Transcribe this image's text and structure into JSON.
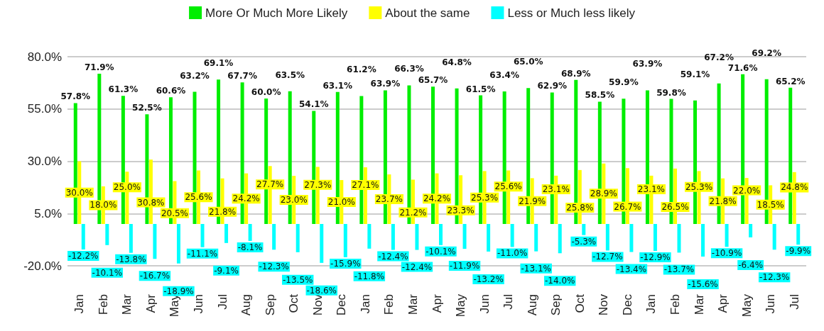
{
  "chart_data": {
    "type": "bar",
    "categories": [
      "Jan",
      "Feb",
      "Mar",
      "Apr",
      "May",
      "Jun",
      "Jul",
      "Aug",
      "Sep",
      "Oct",
      "Nov",
      "Dec",
      "Jan",
      "Feb",
      "Mar",
      "Apr",
      "May",
      "Jun",
      "Jul",
      "Aug",
      "Sep",
      "Oct",
      "Nov",
      "Dec",
      "Jan",
      "Feb",
      "Mar",
      "Apr",
      "May",
      "Jun",
      "Jul"
    ],
    "series": [
      {
        "name": "More Or Much More Likely",
        "color": "#00ee00",
        "values": [
          57.8,
          71.9,
          61.3,
          52.5,
          60.6,
          63.2,
          69.1,
          67.7,
          60.0,
          63.5,
          54.1,
          63.1,
          61.2,
          63.9,
          66.3,
          65.7,
          64.8,
          61.5,
          63.4,
          65.0,
          62.9,
          68.9,
          58.5,
          59.9,
          63.9,
          59.8,
          59.1,
          67.2,
          71.6,
          69.2,
          65.2
        ],
        "value_labels": [
          "57.8%",
          "71.9%",
          "61.3%",
          "52.5%",
          "60.6%",
          "63.2%",
          "69.1%",
          "67.7%",
          "60.0%",
          "63.5%",
          "54.1%",
          "63.1%",
          "61.2%",
          "63.9%",
          "66.3%",
          "65.7%",
          "64.8%",
          "61.5%",
          "63.4%",
          "65.0%",
          "62.9%",
          "68.9%",
          "58.5%",
          "59.9%",
          "63.9%",
          "59.8%",
          "59.1%",
          "67.2%",
          "71.6%",
          "69.2%",
          "65.2%"
        ]
      },
      {
        "name": "About the same",
        "color": "#ffff00",
        "values": [
          30.0,
          18.0,
          25.0,
          30.8,
          20.5,
          25.6,
          21.8,
          24.2,
          27.7,
          23.0,
          27.3,
          21.0,
          27.1,
          23.7,
          21.2,
          24.2,
          23.3,
          25.3,
          25.6,
          21.9,
          23.1,
          25.8,
          28.9,
          26.7,
          23.1,
          26.5,
          25.3,
          21.8,
          22.0,
          18.5,
          24.8
        ],
        "value_labels": [
          "30.0%",
          "18.0%",
          "25.0%",
          "30.8%",
          "20.5%",
          "25.6%",
          "21.8%",
          "24.2%",
          "27.7%",
          "23.0%",
          "27.3%",
          "21.0%",
          "27.1%",
          "23.7%",
          "21.2%",
          "24.2%",
          "23.3%",
          "25.3%",
          "25.6%",
          "21.9%",
          "23.1%",
          "25.8%",
          "28.9%",
          "26.7%",
          "23.1%",
          "26.5%",
          "25.3%",
          "21.8%",
          "22.0%",
          "18.5%",
          "24.8%"
        ]
      },
      {
        "name": "Less or Much less likely",
        "color": "#00ffff",
        "values": [
          -12.2,
          -10.1,
          -13.8,
          -16.7,
          -18.9,
          -11.1,
          -9.1,
          -8.1,
          -12.3,
          -13.5,
          -18.6,
          -15.9,
          -11.8,
          -12.4,
          -12.4,
          -10.1,
          -11.9,
          -13.2,
          -11.0,
          -13.1,
          -14.0,
          -5.3,
          -12.7,
          -13.4,
          -12.9,
          -13.7,
          -15.6,
          -10.9,
          -6.4,
          -12.3,
          -9.9
        ],
        "value_labels": [
          "-12.2%",
          "-10.1%",
          "-13.8%",
          "-16.7%",
          "-18.9%",
          "-11.1%",
          "-9.1%",
          "-8.1%",
          "-12.3%",
          "-13.5%",
          "-18.6%",
          "-15.9%",
          "-11.8%",
          "-12.4%",
          "-12.4%",
          "-10.1%",
          "-11.9%",
          "-13.2%",
          "-11.0%",
          "-13.1%",
          "-14.0%",
          "-5.3%",
          "-12.7%",
          "-13.4%",
          "-12.9%",
          "-13.7%",
          "-15.6%",
          "-10.9%",
          "-6.4%",
          "-12.3%",
          "-9.9%"
        ]
      }
    ],
    "ylim": [
      -20,
      80
    ],
    "yticks": [
      {
        "value": -20,
        "label": "-20.0%"
      },
      {
        "value": 5,
        "label": "5.0%"
      },
      {
        "value": 30,
        "label": "30.0%"
      },
      {
        "value": 55,
        "label": "55.0%"
      },
      {
        "value": 80,
        "label": "80.0%"
      }
    ],
    "grid": "y",
    "legend": "top"
  }
}
